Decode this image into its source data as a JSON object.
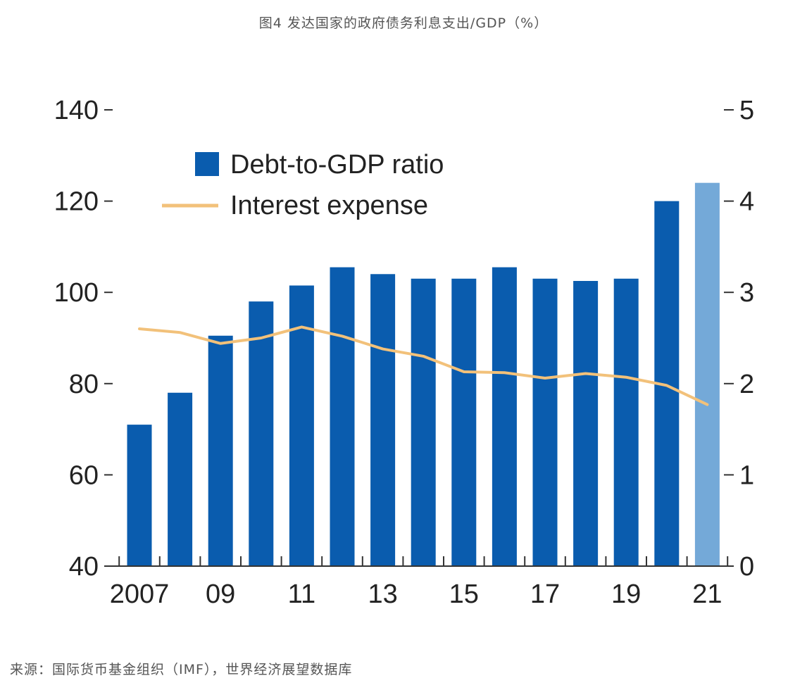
{
  "figure": {
    "title": "图4 发达国家的政府债务利息支出/GDP（%）",
    "source": "来源：国际货币基金组织（IMF），世界经济展望数据库"
  },
  "chart_data": {
    "type": "bar",
    "title": "",
    "xlabel": "",
    "ylabel": "",
    "x": [
      2007,
      2008,
      2009,
      2010,
      2011,
      2012,
      2013,
      2014,
      2015,
      2016,
      2017,
      2018,
      2019,
      2020,
      2021
    ],
    "x_tick_labels": [
      "2007",
      "09",
      "11",
      "13",
      "15",
      "17",
      "19",
      "21"
    ],
    "x_tick_years": [
      2007,
      2009,
      2011,
      2013,
      2015,
      2017,
      2019,
      2021
    ],
    "y_left": {
      "lim": [
        40,
        140
      ],
      "ticks": [
        40,
        60,
        80,
        100,
        120,
        140
      ]
    },
    "y_right": {
      "lim": [
        0,
        5
      ],
      "ticks": [
        0,
        1,
        2,
        3,
        4,
        5
      ]
    },
    "grid": false,
    "legend_position": "top-left",
    "series": [
      {
        "name": "Debt-to-GDP ratio",
        "kind": "bar",
        "axis": "left",
        "color": "#0a5cae",
        "projection_color": "#74a9d8",
        "projection_from": 2021,
        "values": [
          71,
          78,
          90.5,
          98,
          101.5,
          105.5,
          104,
          103,
          103,
          105.5,
          103,
          102.5,
          103,
          120,
          124
        ]
      },
      {
        "name": "Interest expense",
        "kind": "line",
        "axis": "right",
        "color": "#f2c17a",
        "values": [
          2.6,
          2.56,
          2.44,
          2.5,
          2.62,
          2.52,
          2.38,
          2.3,
          2.13,
          2.12,
          2.06,
          2.11,
          2.07,
          1.98,
          1.77
        ]
      }
    ]
  }
}
